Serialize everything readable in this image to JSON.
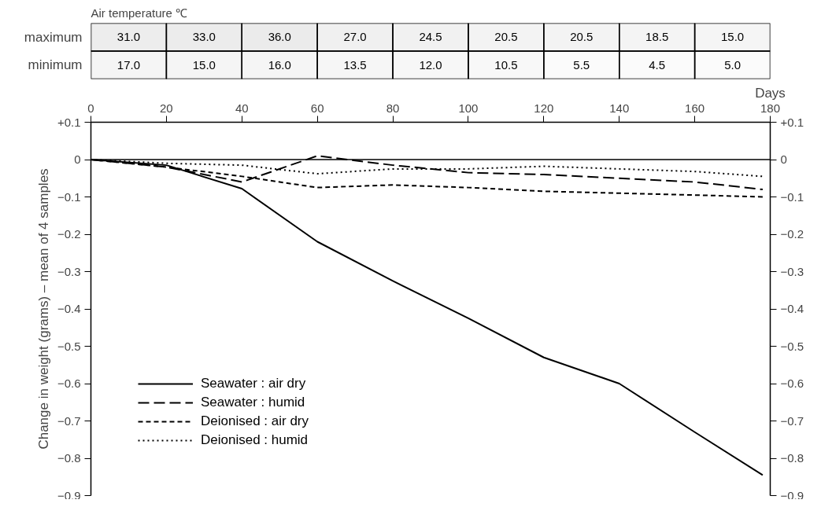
{
  "chart_data": [
    {
      "type": "heatmap",
      "title": "Air temperature ℃",
      "categories": [
        null,
        null,
        null,
        null,
        null,
        null,
        null,
        null,
        null
      ],
      "y_categories": [
        "maximum",
        "minimum"
      ],
      "cells": [
        [
          31.0,
          33.0,
          36.0,
          27.0,
          24.5,
          20.5,
          20.5,
          18.5,
          15.0
        ],
        [
          17.0,
          15.0,
          16.0,
          13.5,
          12.0,
          10.5,
          5.5,
          4.5,
          5.0
        ]
      ],
      "cell_labels": [
        [
          "31.0",
          "33.0",
          "36.0",
          "27.0",
          "24.5",
          "20.5",
          "20.5",
          "18.5",
          "15.0"
        ],
        [
          "17.0",
          "15.0",
          "16.0",
          "13.5",
          "12.0",
          "10.5",
          "5.5",
          "4.5",
          "5.0"
        ]
      ],
      "tick_labels": "y"
    },
    {
      "type": "line",
      "xlabel": "Days",
      "ylabel": "Change in weight (grams) – mean of 4 samples",
      "xlim": [
        0,
        180
      ],
      "xticks": [
        0,
        20,
        40,
        60,
        80,
        100,
        120,
        140,
        160,
        180
      ],
      "ylim": [
        -0.9,
        0.1
      ],
      "yticks": [
        {
          "value": 0.1,
          "label": "+0.1"
        },
        0,
        {
          "value": -0.1,
          "label": "−0.1"
        },
        {
          "value": -0.2,
          "label": "−0.2"
        },
        {
          "value": -0.3,
          "label": "−0.3"
        },
        {
          "value": -0.4,
          "label": "−0.4"
        },
        {
          "value": -0.5,
          "label": "−0.5"
        },
        {
          "value": -0.6,
          "label": "−0.6"
        },
        {
          "value": -0.7,
          "label": "−0.7"
        },
        {
          "value": -0.8,
          "label": "−0.8"
        },
        {
          "value": -0.9,
          "label": "−0.9"
        }
      ],
      "y2lim": [
        -0.9,
        0.1
      ],
      "y2ticks": [
        {
          "value": 0.1,
          "label": "+0.1"
        },
        0,
        {
          "value": -0.1,
          "label": "−0.1"
        },
        {
          "value": -0.2,
          "label": "−0.2"
        },
        {
          "value": -0.3,
          "label": "−0.3"
        },
        {
          "value": -0.4,
          "label": "−0.4"
        },
        {
          "value": -0.5,
          "label": "−0.5"
        },
        {
          "value": -0.6,
          "label": "−0.6"
        },
        {
          "value": -0.7,
          "label": "−0.7"
        },
        {
          "value": -0.8,
          "label": "−0.8"
        },
        {
          "value": -0.9,
          "label": "−0.9"
        }
      ],
      "x": [
        0,
        20,
        40,
        60,
        80,
        100,
        120,
        140,
        160,
        178
      ],
      "series": [
        {
          "name": "Seawater : air dry",
          "color": "#000000",
          "line_style": "solid",
          "values": [
            0,
            -0.015,
            -0.078,
            -0.22,
            -0.325,
            -0.425,
            -0.53,
            -0.6,
            -0.73,
            -0.845
          ]
        },
        {
          "name": "Seawater : humid",
          "color": "#000000",
          "line_style": "dashed",
          "values": [
            0,
            -0.02,
            -0.06,
            0.01,
            -0.015,
            -0.035,
            -0.04,
            -0.05,
            -0.06,
            -0.08
          ]
        },
        {
          "name": "Deionised : air dry",
          "color": "#000000",
          "line_style": "dashed",
          "values": [
            0,
            -0.02,
            -0.045,
            -0.075,
            -0.068,
            -0.075,
            -0.085,
            -0.09,
            -0.095,
            -0.1
          ]
        },
        {
          "name": "Deionised : humid",
          "color": "#000000",
          "line_style": "dotted",
          "values": [
            0,
            -0.01,
            -0.015,
            -0.038,
            -0.025,
            -0.025,
            -0.018,
            -0.025,
            -0.032,
            -0.045
          ]
        }
      ],
      "ref_lines": [
        {
          "axis": "y",
          "value": 0,
          "label": null,
          "color": "#000000",
          "line_style": "solid"
        }
      ],
      "grid": false,
      "legend": "bottom left",
      "marker": "none"
    }
  ]
}
